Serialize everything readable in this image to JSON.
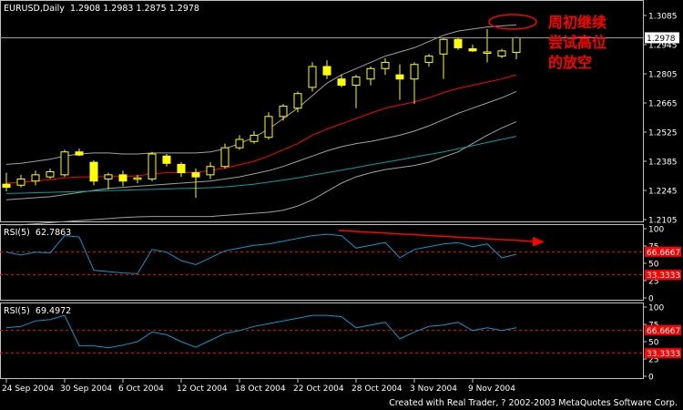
{
  "window": {
    "symbol_info": "EURUSD,Daily  1.2908 1.2983 1.2875 1.2978",
    "footer": "Created with Real Trader, ? 2002-2003 MetaQuotes Software Corp.",
    "annotation_lines": [
      "周初继续",
      "尝试高位",
      "的放空"
    ]
  },
  "colors": {
    "background": "#000000",
    "frame": "#c0c0c0",
    "candle_up": "#ffffff",
    "candle_down": "#ffff00",
    "candle_outline": "#ffff00",
    "ma_red": "#ff0000",
    "band_gray": "#a0a0a0",
    "ma_teal": "#00a0a0",
    "rsi_line": "#0099cc",
    "rsi_level_line": "#ff0000",
    "annotation": "#ff0000"
  },
  "chart_data": [
    {
      "type": "candlestick",
      "title": "EURUSD,Daily",
      "y_ticks": [
        "1.3085",
        "1.2945",
        "1.2805",
        "1.2665",
        "1.2525",
        "1.2385",
        "1.2245",
        "1.2105"
      ],
      "y_tick_values": [
        1.3085,
        1.2945,
        1.2805,
        1.2665,
        1.2525,
        1.2385,
        1.2245,
        1.2105
      ],
      "ylim": [
        1.2105,
        1.3085
      ],
      "current_price": 1.2978,
      "current_price_label": "1.2978",
      "x_labels": [
        "24 Sep 2004",
        "30 Sep 2004",
        "6 Oct 2004",
        "12 Oct 2004",
        "18 Oct 2004",
        "22 Oct 2004",
        "28 Oct 2004",
        "3 Nov 2004",
        "9 Nov 2004"
      ],
      "x_label_indices": [
        0,
        4,
        8,
        12,
        16,
        20,
        24,
        28,
        32
      ],
      "candles": [
        {
          "o": 1.2275,
          "h": 1.233,
          "l": 1.224,
          "c": 1.226
        },
        {
          "o": 1.227,
          "h": 1.232,
          "l": 1.226,
          "c": 1.23
        },
        {
          "o": 1.229,
          "h": 1.234,
          "l": 1.227,
          "c": 1.232
        },
        {
          "o": 1.231,
          "h": 1.235,
          "l": 1.23,
          "c": 1.2335
        },
        {
          "o": 1.232,
          "h": 1.244,
          "l": 1.231,
          "c": 1.243
        },
        {
          "o": 1.243,
          "h": 1.2445,
          "l": 1.241,
          "c": 1.2415
        },
        {
          "o": 1.238,
          "h": 1.239,
          "l": 1.227,
          "c": 1.229
        },
        {
          "o": 1.23,
          "h": 1.233,
          "l": 1.225,
          "c": 1.232
        },
        {
          "o": 1.232,
          "h": 1.234,
          "l": 1.2265,
          "c": 1.229
        },
        {
          "o": 1.23,
          "h": 1.232,
          "l": 1.228,
          "c": 1.2305
        },
        {
          "o": 1.23,
          "h": 1.243,
          "l": 1.229,
          "c": 1.242
        },
        {
          "o": 1.241,
          "h": 1.242,
          "l": 1.236,
          "c": 1.2375
        },
        {
          "o": 1.237,
          "h": 1.238,
          "l": 1.231,
          "c": 1.233
        },
        {
          "o": 1.233,
          "h": 1.235,
          "l": 1.221,
          "c": 1.231
        },
        {
          "o": 1.232,
          "h": 1.238,
          "l": 1.23,
          "c": 1.236
        },
        {
          "o": 1.236,
          "h": 1.247,
          "l": 1.235,
          "c": 1.245
        },
        {
          "o": 1.245,
          "h": 1.251,
          "l": 1.244,
          "c": 1.249
        },
        {
          "o": 1.248,
          "h": 1.253,
          "l": 1.247,
          "c": 1.251
        },
        {
          "o": 1.25,
          "h": 1.262,
          "l": 1.249,
          "c": 1.26
        },
        {
          "o": 1.26,
          "h": 1.266,
          "l": 1.258,
          "c": 1.265
        },
        {
          "o": 1.264,
          "h": 1.272,
          "l": 1.262,
          "c": 1.271
        },
        {
          "o": 1.274,
          "h": 1.286,
          "l": 1.272,
          "c": 1.284
        },
        {
          "o": 1.284,
          "h": 1.287,
          "l": 1.278,
          "c": 1.28
        },
        {
          "o": 1.278,
          "h": 1.28,
          "l": 1.274,
          "c": 1.275
        },
        {
          "o": 1.275,
          "h": 1.28,
          "l": 1.264,
          "c": 1.279
        },
        {
          "o": 1.278,
          "h": 1.284,
          "l": 1.275,
          "c": 1.283
        },
        {
          "o": 1.283,
          "h": 1.288,
          "l": 1.28,
          "c": 1.286
        },
        {
          "o": 1.28,
          "h": 1.285,
          "l": 1.268,
          "c": 1.278
        },
        {
          "o": 1.278,
          "h": 1.286,
          "l": 1.266,
          "c": 1.285
        },
        {
          "o": 1.286,
          "h": 1.29,
          "l": 1.284,
          "c": 1.289
        },
        {
          "o": 1.29,
          "h": 1.298,
          "l": 1.278,
          "c": 1.297
        },
        {
          "o": 1.297,
          "h": 1.298,
          "l": 1.292,
          "c": 1.293
        },
        {
          "o": 1.2925,
          "h": 1.2945,
          "l": 1.291,
          "c": 1.2915
        },
        {
          "o": 1.291,
          "h": 1.302,
          "l": 1.286,
          "c": 1.291
        },
        {
          "o": 1.289,
          "h": 1.2925,
          "l": 1.288,
          "c": 1.2915
        },
        {
          "o": 1.2908,
          "h": 1.2983,
          "l": 1.2875,
          "c": 1.2978
        }
      ],
      "indicators": {
        "ma_red": [
          1.228,
          1.2285,
          1.229,
          1.2297,
          1.2305,
          1.231,
          1.231,
          1.2312,
          1.2312,
          1.2315,
          1.2325,
          1.233,
          1.233,
          1.2332,
          1.234,
          1.2352,
          1.2368,
          1.2385,
          1.241,
          1.244,
          1.247,
          1.251,
          1.254,
          1.2565,
          1.259,
          1.2615,
          1.264,
          1.2655,
          1.267,
          1.269,
          1.2715,
          1.2735,
          1.275,
          1.2765,
          1.278,
          1.28
        ],
        "band_upper": [
          1.237,
          1.2375,
          1.2385,
          1.2395,
          1.241,
          1.242,
          1.2425,
          1.2425,
          1.242,
          1.242,
          1.2425,
          1.2425,
          1.2425,
          1.2425,
          1.243,
          1.2445,
          1.247,
          1.25,
          1.254,
          1.259,
          1.264,
          1.27,
          1.276,
          1.28,
          1.283,
          1.286,
          1.289,
          1.291,
          1.293,
          1.296,
          1.299,
          1.301,
          1.302,
          1.303,
          1.3035,
          1.304
        ],
        "band_lower": [
          1.208,
          1.208,
          1.2085,
          1.209,
          1.2095,
          1.21,
          1.2105,
          1.211,
          1.2115,
          1.2118,
          1.212,
          1.212,
          1.212,
          1.212,
          1.212,
          1.2125,
          1.213,
          1.2135,
          1.214,
          1.215,
          1.217,
          1.22,
          1.224,
          1.228,
          1.231,
          1.233,
          1.2345,
          1.2355,
          1.2365,
          1.238,
          1.2405,
          1.243,
          1.247,
          1.251,
          1.2545,
          1.2575
        ],
        "mid_gray": [
          1.22,
          1.2205,
          1.221,
          1.2215,
          1.2225,
          1.2235,
          1.2245,
          1.2255,
          1.226,
          1.2265,
          1.227,
          1.2275,
          1.228,
          1.2285,
          1.229,
          1.23,
          1.231,
          1.2325,
          1.234,
          1.236,
          1.2385,
          1.241,
          1.2435,
          1.2455,
          1.247,
          1.248,
          1.2495,
          1.251,
          1.253,
          1.2555,
          1.2585,
          1.2615,
          1.264,
          1.2665,
          1.269,
          1.272
        ],
        "ma_teal": [
          1.223,
          1.2232,
          1.2234,
          1.2236,
          1.2238,
          1.224,
          1.2242,
          1.2244,
          1.2246,
          1.2248,
          1.225,
          1.2252,
          1.2254,
          1.2256,
          1.2258,
          1.2262,
          1.2268,
          1.2275,
          1.2285,
          1.2295,
          1.2305,
          1.2318,
          1.233,
          1.2342,
          1.2355,
          1.2368,
          1.238,
          1.2392,
          1.2405,
          1.2418,
          1.243,
          1.2445,
          1.246,
          1.2475,
          1.249,
          1.2505
        ]
      }
    },
    {
      "type": "line",
      "label": "RSI(5)  62.7863",
      "y_ticks": [
        "100",
        "75",
        "50",
        "25",
        "0"
      ],
      "y_tick_values": [
        100,
        75,
        50,
        25,
        0
      ],
      "ylim": [
        0,
        100
      ],
      "levels": [
        66.6667,
        33.3333
      ],
      "level_labels": [
        "66.6667",
        "33.3333"
      ],
      "values": [
        66,
        62,
        66,
        65,
        90,
        88,
        40,
        38,
        36,
        35,
        70,
        66,
        54,
        48,
        58,
        68,
        72,
        76,
        78,
        82,
        86,
        90,
        92,
        90,
        72,
        76,
        80,
        58,
        70,
        74,
        78,
        80,
        74,
        78,
        58,
        63
      ]
    },
    {
      "type": "line",
      "label": "RSI(5)  69.4972",
      "y_ticks": [
        "100",
        "75",
        "50",
        "25",
        "0"
      ],
      "y_tick_values": [
        100,
        75,
        50,
        25,
        0
      ],
      "ylim": [
        0,
        100
      ],
      "levels": [
        66.6667,
        33.3333
      ],
      "level_labels": [
        "66.6667",
        "33.3333"
      ],
      "values": [
        70,
        72,
        80,
        82,
        88,
        44,
        44,
        41,
        45,
        50,
        64,
        60,
        50,
        42,
        52,
        62,
        66,
        72,
        76,
        80,
        84,
        88,
        88,
        86,
        70,
        74,
        78,
        54,
        64,
        72,
        74,
        78,
        66,
        70,
        66,
        70
      ]
    }
  ]
}
